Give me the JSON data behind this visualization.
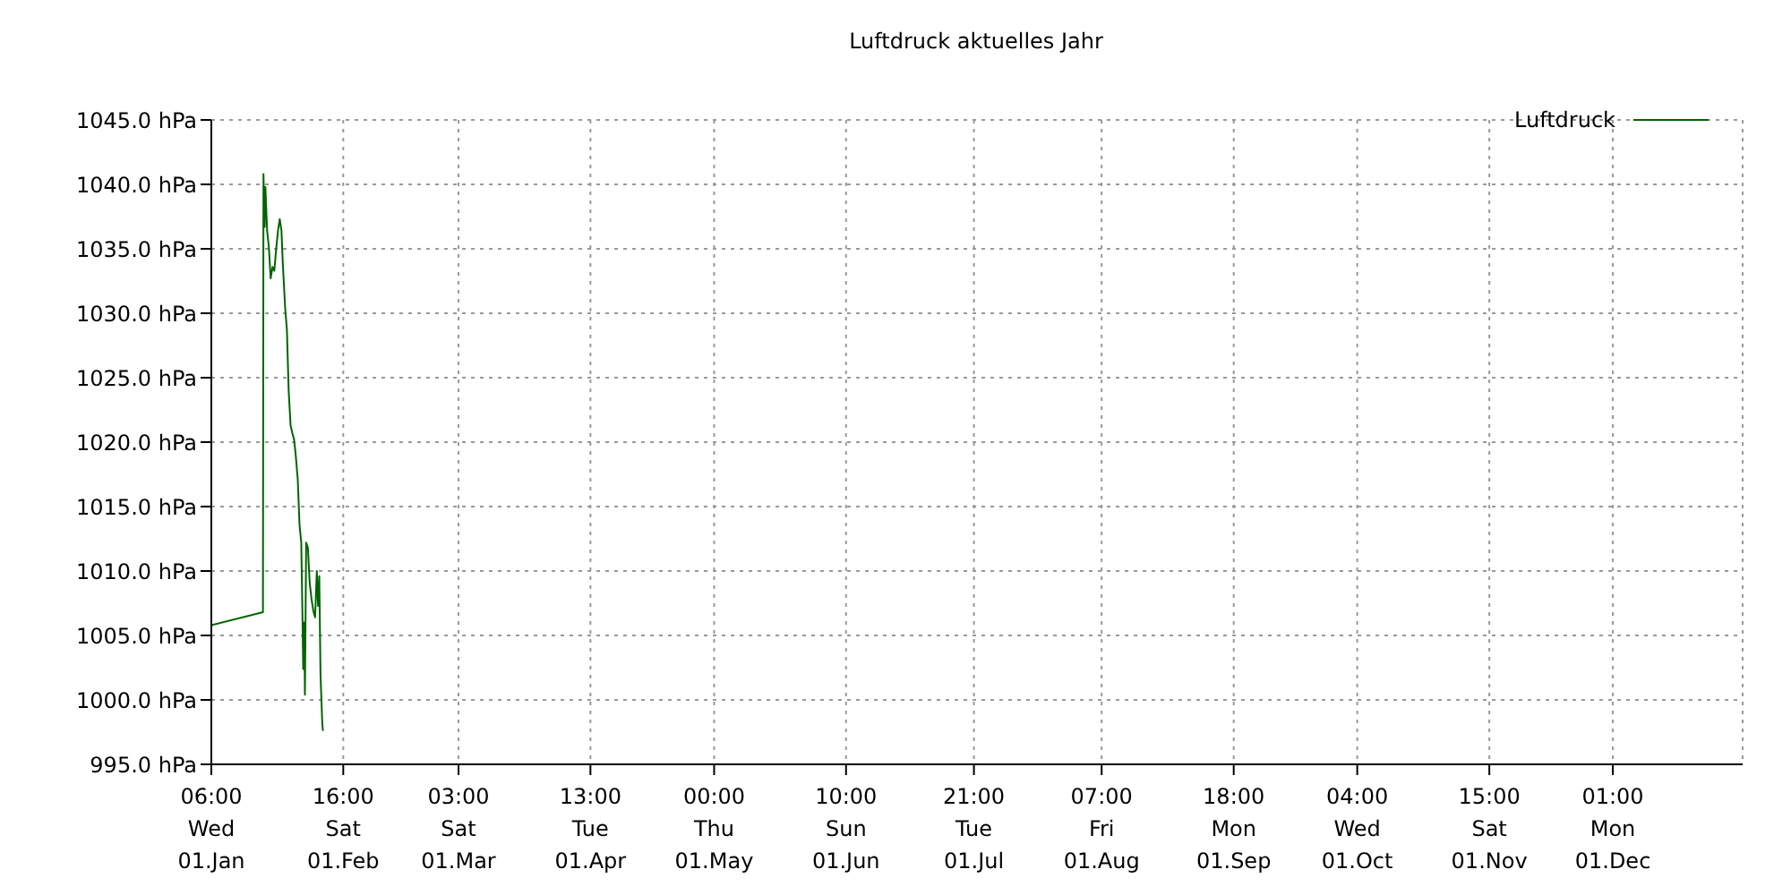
{
  "chart_data": {
    "type": "line",
    "title": "Luftdruck aktuelles Jahr",
    "x": [
      "--01-01T06:00",
      "--01-13T13:00",
      "--01-13T16:00",
      "--01-13T23:00",
      "--01-14T03:00",
      "--01-14T13:00",
      "--01-14T23:00",
      "--01-15T09:00",
      "--01-15T20:00",
      "--01-16T06:00",
      "--01-16T16:00",
      "--01-17T03:00",
      "--01-17T13:00",
      "--01-17T23:00",
      "--01-18T06:00",
      "--01-18T20:00",
      "--01-19T06:00",
      "--01-19T16:00",
      "--01-20T03:00",
      "--01-20T13:00",
      "--01-20T23:00",
      "--01-21T09:00",
      "--01-21T20:00",
      "--01-22T06:00",
      "--01-22T16:00",
      "--01-22T23:00",
      "--01-23T03:00",
      "--01-23T09:00",
      "--01-23T13:00",
      "--01-23T20:00",
      "--01-24T06:00",
      "--01-24T16:00",
      "--01-25T03:00",
      "--01-25T13:00",
      "--01-25T23:00",
      "--01-26T09:00",
      "--01-26T16:00",
      "--01-26T23:00",
      "--01-27T06:00",
      "--01-27T16:00",
      "--01-27T20:00"
    ],
    "series": [
      {
        "name": "Luftdruck",
        "color": "#006400",
        "values": [
          1005.8,
          1006.8,
          1040.8,
          1036.7,
          1039.8,
          1036.4,
          1035.1,
          1032.7,
          1033.6,
          1033.3,
          1034.9,
          1036.4,
          1037.3,
          1036.4,
          1034,
          1030.4,
          1028.7,
          1024,
          1021.3,
          1020.7,
          1020.2,
          1018.9,
          1017.1,
          1013.6,
          1012.2,
          1006.4,
          1002.4,
          1006,
          1000.4,
          1012.2,
          1011.8,
          1009.1,
          1007.8,
          1006.9,
          1006.4,
          1010,
          1007.3,
          1009.6,
          1002,
          998.2,
          997.6
        ]
      }
    ],
    "xlim": [
      "--01-01T06:00",
      "--12-31T23:00"
    ],
    "xticks": [
      {
        "value": "--01-01T06:00",
        "label": "06:00\nWed\n01.Jan"
      },
      {
        "value": "--02-01T16:00",
        "label": "16:00\nSat\n01.Feb"
      },
      {
        "value": "--03-01T03:00",
        "label": "03:00\nSat\n01.Mar"
      },
      {
        "value": "--04-01T13:00",
        "label": "13:00\nTue\n01.Apr"
      },
      {
        "value": "--05-01T00:00",
        "label": "00:00\nThu\n01.May"
      },
      {
        "value": "--06-01T10:00",
        "label": "10:00\nSun\n01.Jun"
      },
      {
        "value": "--07-01T21:00",
        "label": "21:00\nTue\n01.Jul"
      },
      {
        "value": "--08-01T07:00",
        "label": "07:00\nFri\n01.Aug"
      },
      {
        "value": "--09-01T18:00",
        "label": "18:00\nMon\n01.Sep"
      },
      {
        "value": "--10-01T04:00",
        "label": "04:00\nWed\n01.Oct"
      },
      {
        "value": "--11-01T15:00",
        "label": "15:00\nSat\n01.Nov"
      },
      {
        "value": "--12-01T01:00",
        "label": "01:00\nMon\n01.Dec"
      }
    ],
    "ylim": [
      995,
      1045
    ],
    "yticks": [
      {
        "value": 995,
        "label": "995.0 hPa"
      },
      {
        "value": 1000,
        "label": "1000.0 hPa"
      },
      {
        "value": 1005,
        "label": "1005.0 hPa"
      },
      {
        "value": 1010,
        "label": "1010.0 hPa"
      },
      {
        "value": 1015,
        "label": "1015.0 hPa"
      },
      {
        "value": 1020,
        "label": "1020.0 hPa"
      },
      {
        "value": 1025,
        "label": "1025.0 hPa"
      },
      {
        "value": 1030,
        "label": "1030.0 hPa"
      },
      {
        "value": 1035,
        "label": "1035.0 hPa"
      },
      {
        "value": 1040,
        "label": "1040.0 hPa"
      },
      {
        "value": 1045,
        "label": "1045.0 hPa"
      }
    ],
    "grid": true,
    "legend": "top right",
    "marker": "none",
    "line_style": "solid"
  }
}
